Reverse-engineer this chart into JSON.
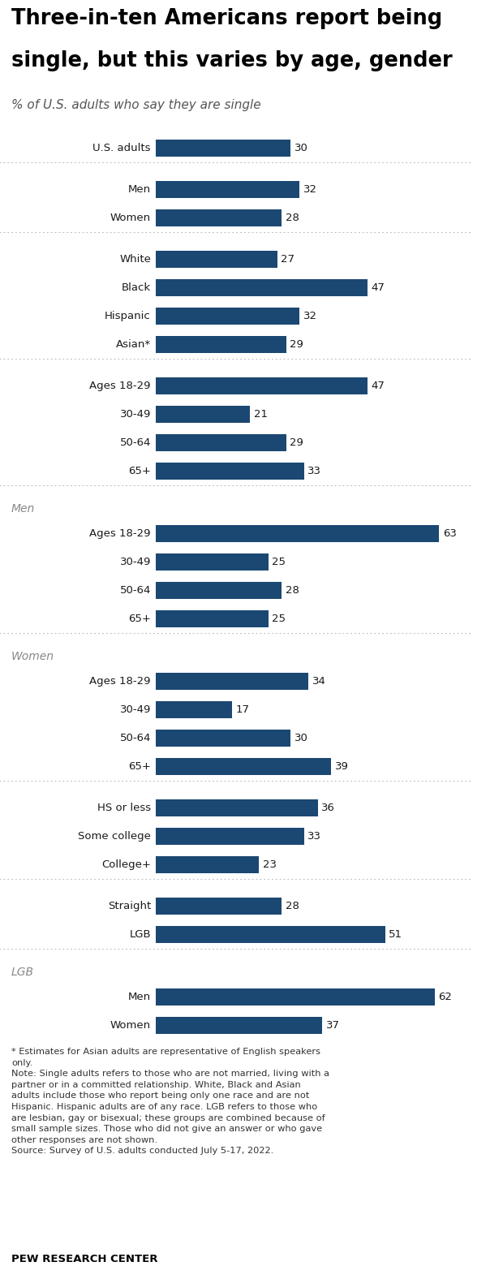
{
  "title_line1": "Three-in-ten Americans report being",
  "title_line2": "single, but this varies by age, gender",
  "subtitle": "% of U.S. adults who say they are single",
  "bar_color": "#1B4872",
  "background_color": "#FFFFFF",
  "bar_height": 0.6,
  "xlim": [
    0,
    70
  ],
  "sections": [
    {
      "section_label": null,
      "rows": [
        {
          "label": "U.S. adults",
          "value": 30,
          "indent": 0
        }
      ],
      "separator_after": true
    },
    {
      "section_label": null,
      "rows": [
        {
          "label": "Men",
          "value": 32,
          "indent": 1
        },
        {
          "label": "Women",
          "value": 28,
          "indent": 1
        }
      ],
      "separator_after": true
    },
    {
      "section_label": null,
      "rows": [
        {
          "label": "White",
          "value": 27,
          "indent": 1
        },
        {
          "label": "Black",
          "value": 47,
          "indent": 1
        },
        {
          "label": "Hispanic",
          "value": 32,
          "indent": 1
        },
        {
          "label": "Asian*",
          "value": 29,
          "indent": 1
        }
      ],
      "separator_after": true
    },
    {
      "section_label": null,
      "rows": [
        {
          "label": "Ages 18-29",
          "value": 47,
          "indent": 0
        },
        {
          "label": "30-49",
          "value": 21,
          "indent": 1
        },
        {
          "label": "50-64",
          "value": 29,
          "indent": 1
        },
        {
          "label": "65+",
          "value": 33,
          "indent": 1
        }
      ],
      "separator_after": true
    },
    {
      "section_label": "Men",
      "rows": [
        {
          "label": "Ages 18-29",
          "value": 63,
          "indent": 0
        },
        {
          "label": "30-49",
          "value": 25,
          "indent": 1
        },
        {
          "label": "50-64",
          "value": 28,
          "indent": 1
        },
        {
          "label": "65+",
          "value": 25,
          "indent": 1
        }
      ],
      "separator_after": true
    },
    {
      "section_label": "Women",
      "rows": [
        {
          "label": "Ages 18-29",
          "value": 34,
          "indent": 0
        },
        {
          "label": "30-49",
          "value": 17,
          "indent": 1
        },
        {
          "label": "50-64",
          "value": 30,
          "indent": 1
        },
        {
          "label": "65+",
          "value": 39,
          "indent": 1
        }
      ],
      "separator_after": true
    },
    {
      "section_label": null,
      "rows": [
        {
          "label": "HS or less",
          "value": 36,
          "indent": 1
        },
        {
          "label": "Some college",
          "value": 33,
          "indent": 1
        },
        {
          "label": "College+",
          "value": 23,
          "indent": 1
        }
      ],
      "separator_after": true
    },
    {
      "section_label": null,
      "rows": [
        {
          "label": "Straight",
          "value": 28,
          "indent": 1
        },
        {
          "label": "LGB",
          "value": 51,
          "indent": 1
        }
      ],
      "separator_after": true
    },
    {
      "section_label": "LGB",
      "rows": [
        {
          "label": "Men",
          "value": 62,
          "indent": 1
        },
        {
          "label": "Women",
          "value": 37,
          "indent": 1
        }
      ],
      "separator_after": false
    }
  ],
  "footnote_text": "* Estimates for Asian adults are representative of English speakers\nonly.\nNote: Single adults refers to those who are not married, living with a\npartner or in a committed relationship. White, Black and Asian\nadults include those who report being only one race and are not\nHispanic. Hispanic adults are of any race. LGB refers to those who\nare lesbian, gay or bisexual; these groups are combined because of\nsmall sample sizes. Those who did not give an answer or who gave\nother responses are not shown.\nSource: Survey of U.S. adults conducted July 5-17, 2022.",
  "pew_label": "PEW RESEARCH CENTER"
}
